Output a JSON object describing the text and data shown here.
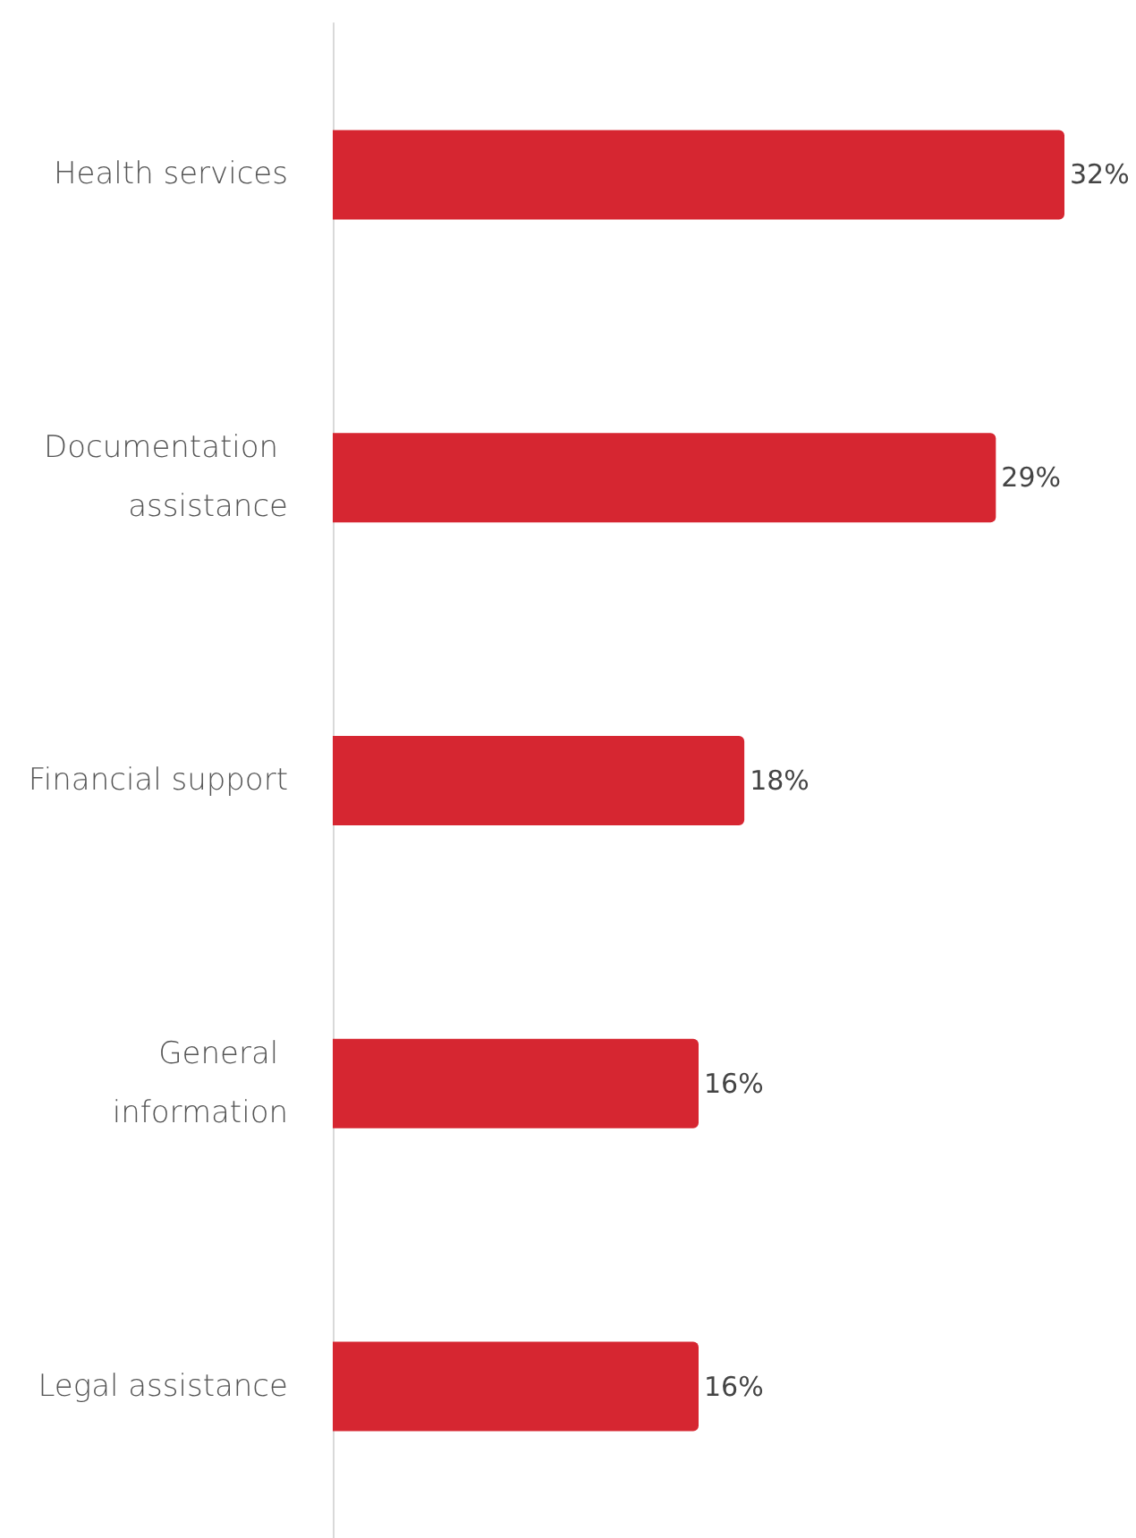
{
  "chart_data": {
    "type": "bar",
    "orientation": "horizontal",
    "categories": [
      "Health services",
      "Documentation assistance",
      "Financial support",
      "General information",
      "Legal assistance"
    ],
    "values": [
      32,
      29,
      18,
      16,
      16
    ],
    "value_labels": [
      "32%",
      "29%",
      "18%",
      "16%",
      "16%"
    ],
    "color": "#d62631"
  }
}
